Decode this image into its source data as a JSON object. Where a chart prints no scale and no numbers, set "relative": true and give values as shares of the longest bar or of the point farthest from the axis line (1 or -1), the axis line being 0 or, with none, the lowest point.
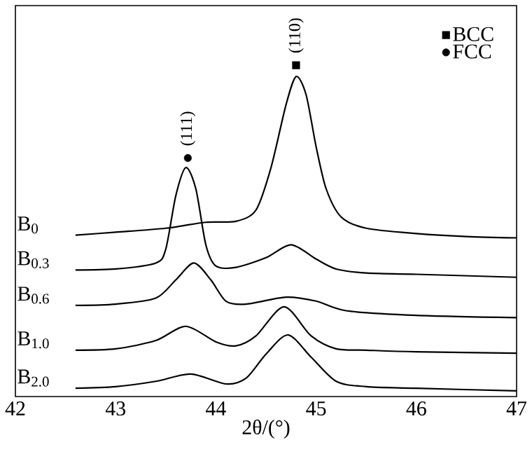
{
  "chart_data": {
    "type": "line",
    "relative": true,
    "xlabel": "2θ/(°)",
    "xlim": [
      42,
      47
    ],
    "xticks": [
      42,
      43,
      44,
      45,
      46,
      47
    ],
    "legend": "top right",
    "grid": false,
    "series": [
      {
        "name": "B$_{0}$",
        "color": "#000000",
        "x": [
          42.6,
          43.0,
          43.5,
          43.9,
          44.2,
          44.4,
          44.55,
          44.7,
          44.8,
          44.9,
          45.0,
          45.1,
          45.25,
          45.5,
          46.0,
          46.5,
          47.0
        ],
        "values": [
          0.487,
          0.496,
          0.508,
          0.526,
          0.529,
          0.563,
          0.691,
          0.881,
          0.966,
          0.911,
          0.754,
          0.627,
          0.542,
          0.508,
          0.492,
          0.483,
          0.479
        ]
      },
      {
        "name": "B$_{0.3}$",
        "color": "#000000",
        "x": [
          42.6,
          43.0,
          43.4,
          43.5,
          43.6,
          43.7,
          43.8,
          43.9,
          44.0,
          44.2,
          44.5,
          44.75,
          45.0,
          45.2,
          45.5,
          46.0,
          47.0
        ],
        "values": [
          0.382,
          0.385,
          0.403,
          0.445,
          0.606,
          0.691,
          0.627,
          0.458,
          0.394,
          0.39,
          0.419,
          0.458,
          0.415,
          0.385,
          0.373,
          0.369,
          0.36
        ]
      },
      {
        "name": "B$_{0.6}$",
        "color": "#000000",
        "x": [
          42.6,
          43.0,
          43.4,
          43.6,
          43.78,
          43.95,
          44.1,
          44.3,
          44.7,
          45.0,
          45.3,
          46.0,
          47.0
        ],
        "values": [
          0.275,
          0.279,
          0.297,
          0.352,
          0.403,
          0.352,
          0.288,
          0.279,
          0.3,
          0.288,
          0.259,
          0.245,
          0.238
        ]
      },
      {
        "name": "B$_{1.0}$",
        "color": "#000000",
        "x": [
          42.6,
          43.0,
          43.4,
          43.7,
          44.0,
          44.2,
          44.4,
          44.68,
          44.95,
          45.2,
          45.5,
          46.0,
          47.0
        ],
        "values": [
          0.14,
          0.144,
          0.169,
          0.212,
          0.165,
          0.153,
          0.183,
          0.271,
          0.183,
          0.144,
          0.14,
          0.135,
          0.131
        ]
      },
      {
        "name": "B$_{2.0}$",
        "color": "#000000",
        "x": [
          42.6,
          43.0,
          43.4,
          43.75,
          44.1,
          44.3,
          44.5,
          44.72,
          44.95,
          45.2,
          45.5,
          46.0,
          47.0
        ],
        "values": [
          0.025,
          0.03,
          0.046,
          0.068,
          0.038,
          0.055,
          0.128,
          0.186,
          0.119,
          0.046,
          0.03,
          0.025,
          0.017
        ]
      },
      {
        "name": "BCC",
        "type": "scatter",
        "marker": "square",
        "color": "#000000",
        "x": [
          44.8
        ],
        "values": [
          1.0
        ]
      },
      {
        "name": "FCC",
        "type": "scatter",
        "marker": "circle",
        "color": "#000000",
        "x": [
          43.72
        ],
        "values": [
          0.72
        ]
      }
    ],
    "annotations": [
      {
        "text": "(110)",
        "x": 44.8,
        "y": 1.0
      },
      {
        "text": "(111)",
        "x": 43.72,
        "y": 0.72
      }
    ]
  }
}
